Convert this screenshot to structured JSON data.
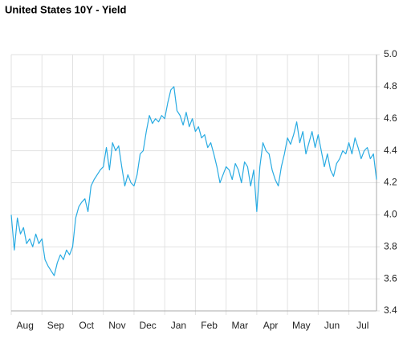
{
  "chart_data": {
    "type": "line",
    "title": "United States 10Y - Yield",
    "categories": [
      null,
      null,
      null,
      null,
      null,
      "Aug",
      null,
      null,
      null,
      null,
      null,
      null,
      null,
      null,
      null,
      "Sep",
      null,
      null,
      null,
      null,
      null,
      null,
      null,
      null,
      null,
      "Oct",
      null,
      null,
      null,
      null,
      null,
      null,
      null,
      null,
      null,
      "Nov",
      null,
      null,
      null,
      null,
      null,
      null,
      null,
      null,
      null,
      "Dec",
      null,
      null,
      null,
      null,
      null,
      null,
      null,
      null,
      null,
      "Jan",
      null,
      null,
      null,
      null,
      null,
      null,
      null,
      null,
      null,
      "Feb",
      null,
      null,
      null,
      null,
      null,
      null,
      null,
      null,
      null,
      "Mar",
      null,
      null,
      null,
      null,
      null,
      null,
      null,
      null,
      null,
      "Apr",
      null,
      null,
      null,
      null,
      null,
      null,
      null,
      null,
      null,
      "May",
      null,
      null,
      null,
      null,
      null,
      null,
      null,
      null,
      null,
      "Jun",
      null,
      null,
      null,
      null,
      null,
      null,
      null,
      null,
      null,
      "Jul",
      null,
      null,
      null,
      null
    ],
    "values": [
      4.0,
      3.78,
      3.98,
      3.88,
      3.92,
      3.82,
      3.85,
      3.8,
      3.88,
      3.82,
      3.85,
      3.72,
      3.68,
      3.65,
      3.62,
      3.7,
      3.75,
      3.72,
      3.78,
      3.75,
      3.8,
      3.98,
      4.05,
      4.08,
      4.1,
      4.02,
      4.18,
      4.22,
      4.25,
      4.28,
      4.3,
      4.42,
      4.28,
      4.45,
      4.4,
      4.43,
      4.3,
      4.18,
      4.25,
      4.2,
      4.18,
      4.25,
      4.38,
      4.4,
      4.52,
      4.62,
      4.57,
      4.6,
      4.58,
      4.62,
      4.6,
      4.7,
      4.78,
      4.8,
      4.65,
      4.62,
      4.56,
      4.64,
      4.55,
      4.6,
      4.52,
      4.55,
      4.48,
      4.5,
      4.42,
      4.45,
      4.38,
      4.3,
      4.2,
      4.25,
      4.3,
      4.28,
      4.22,
      4.32,
      4.28,
      4.2,
      4.33,
      4.3,
      4.18,
      4.28,
      4.02,
      4.3,
      4.45,
      4.4,
      4.38,
      4.28,
      4.22,
      4.18,
      4.3,
      4.38,
      4.48,
      4.44,
      4.5,
      4.58,
      4.45,
      4.52,
      4.38,
      4.45,
      4.52,
      4.42,
      4.5,
      4.4,
      4.3,
      4.38,
      4.28,
      4.24,
      4.32,
      4.35,
      4.4,
      4.38,
      4.45,
      4.38,
      4.48,
      4.42,
      4.35,
      4.4,
      4.42,
      4.35,
      4.38,
      4.22
    ],
    "color": "#29abe2",
    "ylim": [
      3.4,
      5.0
    ],
    "yticks": [
      3.4,
      3.6,
      3.8,
      {
        "value": 4.0,
        "label": "4.0"
      },
      4.2,
      4.4,
      4.6,
      4.8,
      {
        "value": 5.0,
        "label": "5.0"
      }
    ],
    "grid": true
  }
}
